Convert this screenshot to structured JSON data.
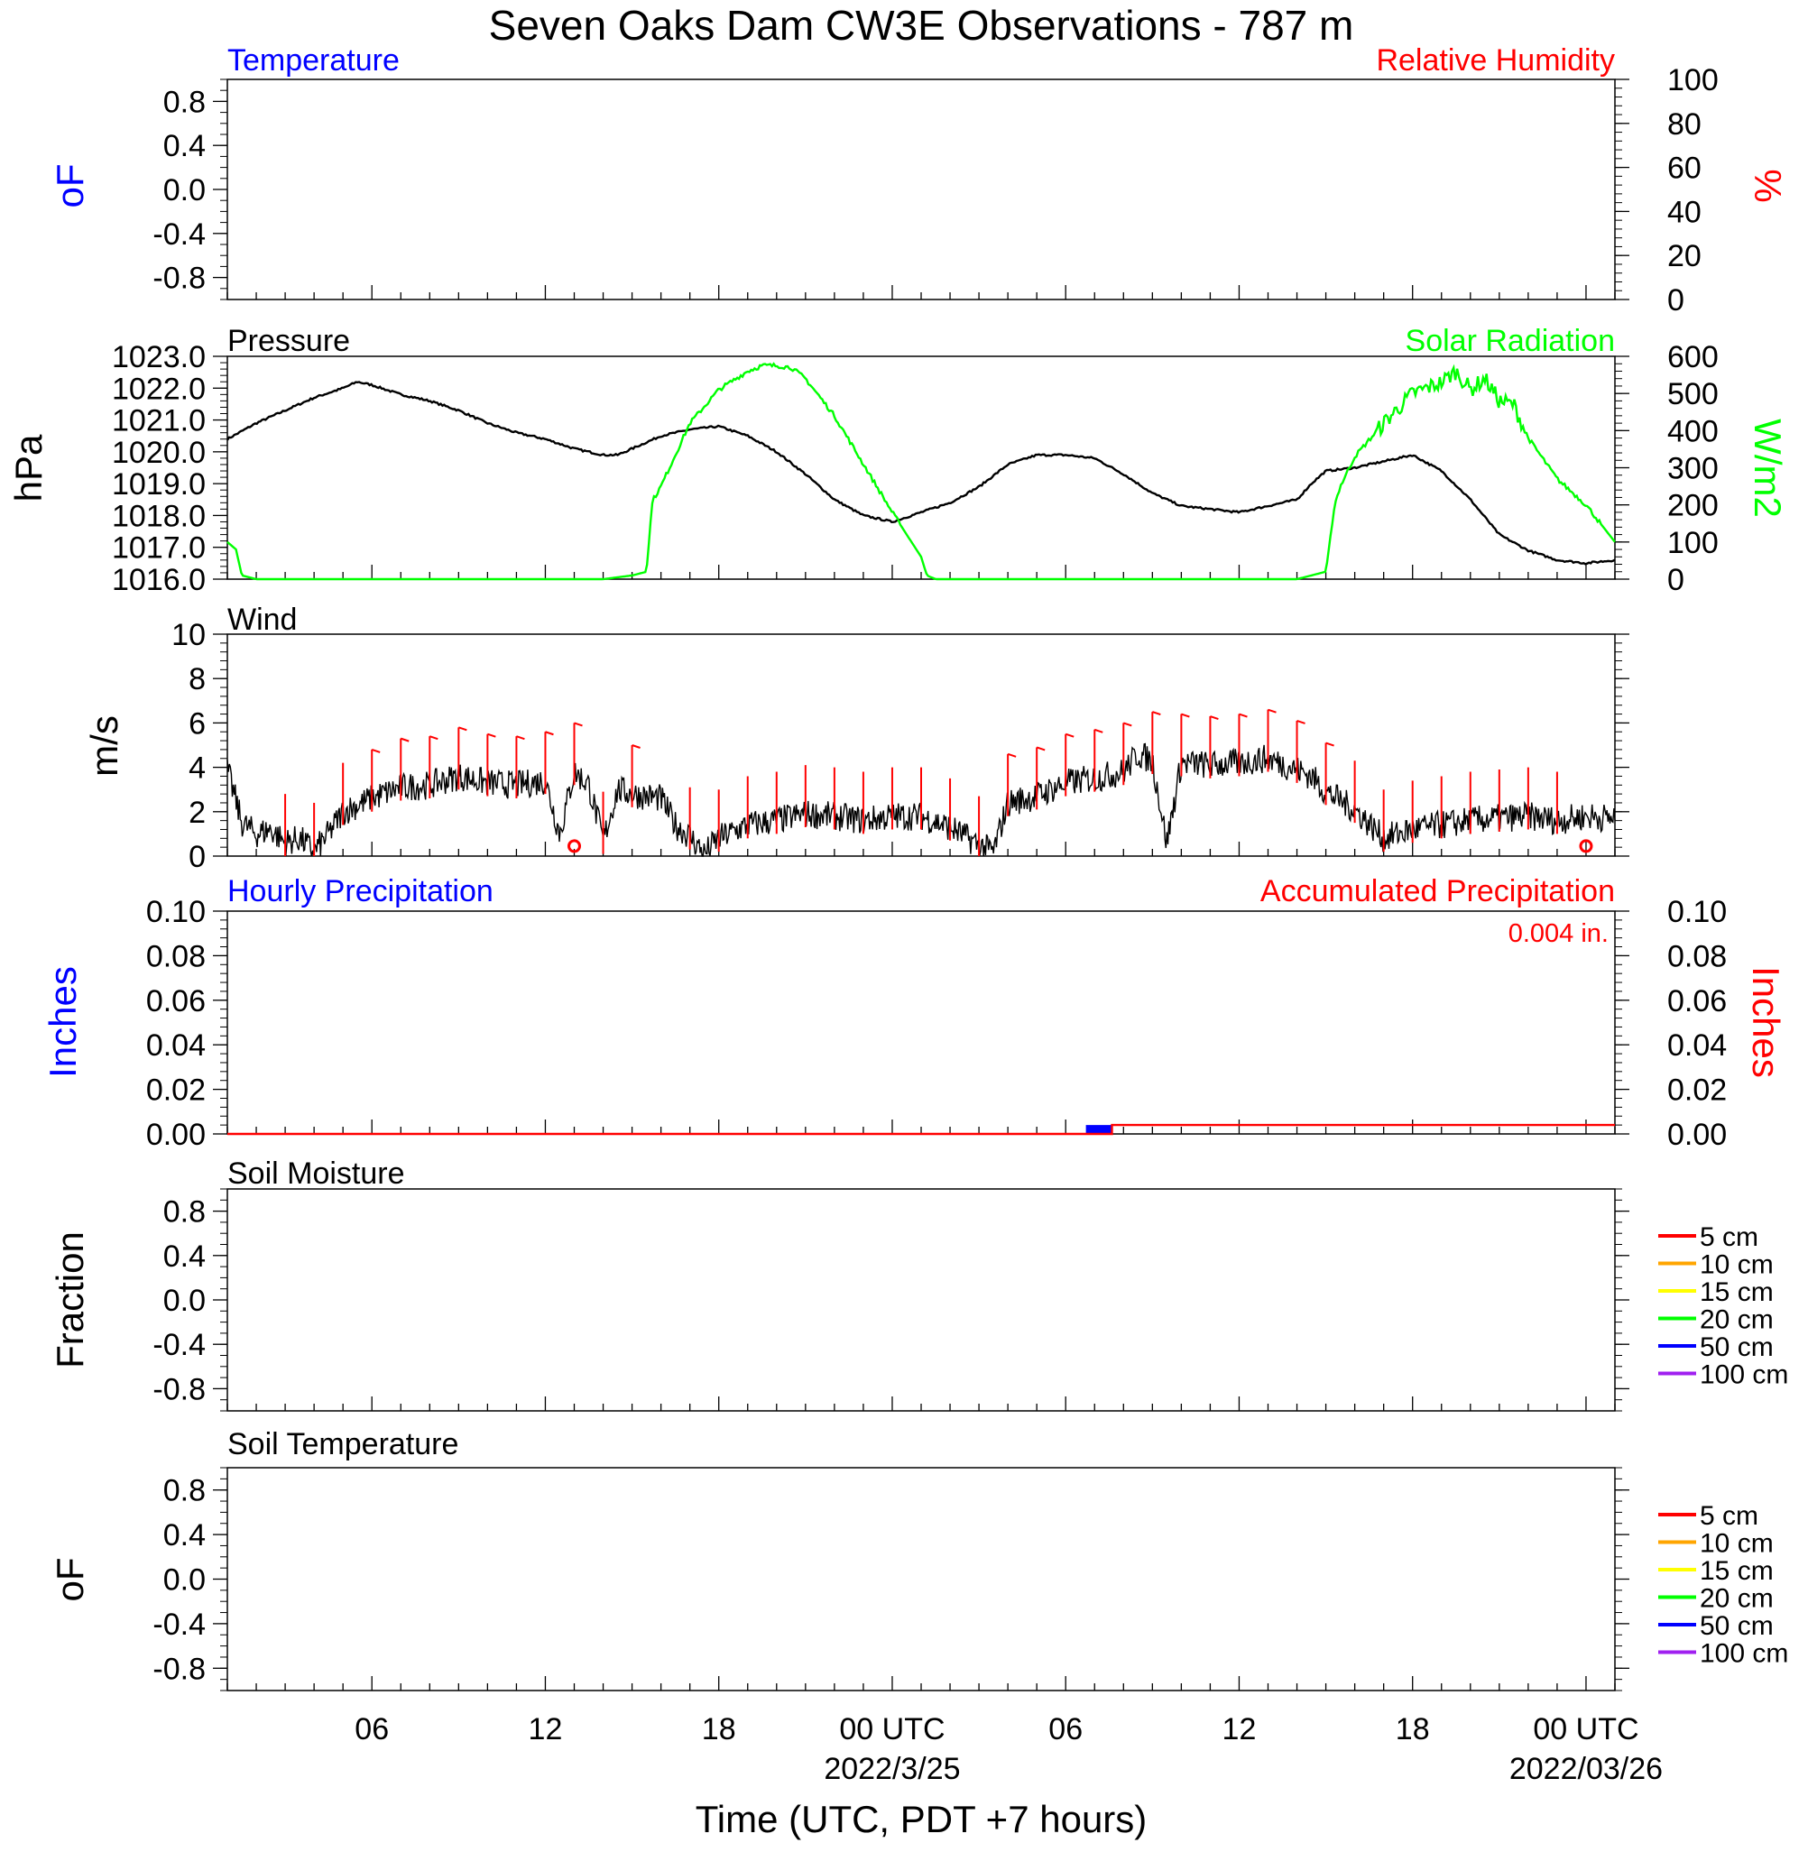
{
  "figure": {
    "title": "Seven Oaks Dam CW3E Observations - 787 m",
    "xlabel": "Time (UTC, PDT +7 hours)"
  },
  "time_axis": {
    "range_hours": [
      0,
      48
    ],
    "ticks": [
      {
        "h": 5,
        "label": "06",
        "sub": ""
      },
      {
        "h": 11,
        "label": "12",
        "sub": ""
      },
      {
        "h": 17,
        "label": "18",
        "sub": ""
      },
      {
        "h": 23,
        "label": "00 UTC",
        "sub": "2022/3/25"
      },
      {
        "h": 29,
        "label": "06",
        "sub": ""
      },
      {
        "h": 35,
        "label": "12",
        "sub": ""
      },
      {
        "h": 41,
        "label": "18",
        "sub": ""
      },
      {
        "h": 47,
        "label": "00 UTC",
        "sub": "2022/03/26"
      }
    ]
  },
  "panels": {
    "temperature": {
      "title_left": "Temperature",
      "title_right": "Relative Humidity",
      "ylabel_left": "oF",
      "ylabel_right": "%",
      "left_ticks": [
        "0.8",
        "0.4",
        "0.0",
        "-0.4",
        "-0.8"
      ],
      "right_ticks": [
        "100",
        "80",
        "60",
        "40",
        "20",
        "0"
      ]
    },
    "pressure": {
      "title_left": "Pressure",
      "title_right": "Solar Radiation",
      "ylabel_left": "hPa",
      "ylabel_right": "W/m2",
      "left_ticks": [
        "1023.0",
        "1022.0",
        "1021.0",
        "1020.0",
        "1019.0",
        "1018.0",
        "1017.0",
        "1016.0"
      ],
      "right_ticks": [
        "600",
        "500",
        "400",
        "300",
        "200",
        "100",
        "0"
      ]
    },
    "wind": {
      "title_left": "Wind",
      "ylabel_left": "m/s",
      "left_ticks": [
        "10",
        "8",
        "6",
        "4",
        "2",
        "0"
      ]
    },
    "precip": {
      "title_left": "Hourly Precipitation",
      "title_right": "Accumulated Precipitation",
      "total_label": "0.004 in.",
      "ylabel_left": "Inches",
      "ylabel_right": "Inches",
      "left_ticks": [
        "0.10",
        "0.08",
        "0.06",
        "0.04",
        "0.02",
        "0.00"
      ],
      "right_ticks": [
        "0.10",
        "0.08",
        "0.06",
        "0.04",
        "0.02",
        "0.00"
      ]
    },
    "soil_moisture": {
      "title_left": "Soil Moisture",
      "ylabel_left": "Fraction",
      "left_ticks": [
        "0.8",
        "0.4",
        "0.0",
        "-0.4",
        "-0.8"
      ],
      "legend": [
        {
          "label": "5 cm",
          "color": "#ff0000"
        },
        {
          "label": "10 cm",
          "color": "#ffa500"
        },
        {
          "label": "15 cm",
          "color": "#ffff00"
        },
        {
          "label": "20 cm",
          "color": "#00ff00"
        },
        {
          "label": "50 cm",
          "color": "#0000ff"
        },
        {
          "label": "100 cm",
          "color": "#a020f0"
        }
      ]
    },
    "soil_temperature": {
      "title_left": "Soil Temperature",
      "ylabel_left": "oF",
      "left_ticks": [
        "0.8",
        "0.4",
        "0.0",
        "-0.4",
        "-0.8"
      ],
      "legend": [
        {
          "label": "5 cm",
          "color": "#ff0000"
        },
        {
          "label": "10 cm",
          "color": "#ffa500"
        },
        {
          "label": "15 cm",
          "color": "#ffff00"
        },
        {
          "label": "20 cm",
          "color": "#00ff00"
        },
        {
          "label": "50 cm",
          "color": "#0000ff"
        },
        {
          "label": "100 cm",
          "color": "#a020f0"
        }
      ]
    }
  },
  "colors": {
    "temperature": "#0000ff",
    "relative_humidity": "#ff0000",
    "pressure": "#000000",
    "solar": "#00ff00",
    "wind_speed": "#000000",
    "wind_barbs": "#ff0000",
    "hourly_precip": "#0000ff",
    "accum_precip": "#ff0000"
  },
  "chart_data": [
    {
      "type": "line",
      "panel": "temperature",
      "series": [],
      "ylim_left": [
        -1,
        1
      ],
      "ylim_right": [
        0,
        100
      ]
    },
    {
      "type": "line",
      "panel": "pressure",
      "x_unit": "hours since first plotted sample",
      "ylim_left": [
        1016,
        1023
      ],
      "ylim_right": [
        0,
        600
      ],
      "series": [
        {
          "axis": "left",
          "x": [
            0,
            1,
            2,
            3,
            4,
            4.5,
            5,
            6,
            7,
            8,
            9,
            10,
            11,
            12,
            13,
            13.5,
            14,
            15,
            16,
            17,
            18,
            19,
            20,
            21,
            22,
            23,
            24,
            25,
            26,
            27,
            28,
            29,
            30,
            31,
            32,
            33,
            34,
            35,
            36,
            37,
            37.5,
            38,
            39,
            40,
            41,
            42,
            43,
            44,
            45,
            46,
            47,
            48
          ],
          "values": [
            1020.4,
            1020.9,
            1021.3,
            1021.7,
            1022.0,
            1022.2,
            1022.1,
            1021.8,
            1021.6,
            1021.3,
            1020.9,
            1020.6,
            1020.4,
            1020.1,
            1019.9,
            1019.9,
            1020.1,
            1020.5,
            1020.7,
            1020.8,
            1020.5,
            1020.0,
            1019.3,
            1018.5,
            1018.0,
            1017.8,
            1018.1,
            1018.4,
            1018.9,
            1019.6,
            1019.9,
            1019.9,
            1019.8,
            1019.3,
            1018.7,
            1018.3,
            1018.2,
            1018.1,
            1018.3,
            1018.5,
            1019.0,
            1019.4,
            1019.5,
            1019.7,
            1019.9,
            1019.4,
            1018.5,
            1017.4,
            1016.9,
            1016.6,
            1016.5,
            1016.6
          ]
        },
        {
          "axis": "right",
          "x": [
            0,
            0.3,
            0.5,
            1,
            2,
            5,
            8,
            11,
            13,
            14,
            14.5,
            14.7,
            15,
            16,
            17,
            18,
            18.5,
            19,
            19.5,
            20,
            21,
            22,
            23,
            24,
            24.2,
            24.5,
            26,
            30,
            34,
            37,
            38,
            38.3,
            38.5,
            39,
            40,
            41,
            42,
            42.5,
            43,
            43.5,
            44,
            44.5,
            45,
            46,
            47,
            48
          ],
          "values": [
            100,
            80,
            10,
            0,
            0,
            0,
            0,
            0,
            0,
            10,
            20,
            210,
            250,
            420,
            510,
            560,
            575,
            575,
            570,
            540,
            440,
            310,
            180,
            60,
            10,
            0,
            0,
            0,
            0,
            0,
            20,
            200,
            250,
            330,
            420,
            500,
            530,
            560,
            510,
            540,
            480,
            470,
            380,
            270,
            200,
            100
          ]
        }
      ]
    },
    {
      "type": "line",
      "panel": "wind",
      "ylim": [
        0,
        10
      ],
      "x": [
        0,
        0.5,
        1,
        1.5,
        2,
        2.5,
        3,
        3.5,
        4,
        5,
        6,
        7,
        8,
        9,
        10,
        10.5,
        11,
        11.5,
        12,
        12.5,
        13,
        13.5,
        14,
        15,
        15.5,
        16,
        16.5,
        17,
        18,
        19,
        20,
        21,
        22,
        23,
        24,
        25,
        25.5,
        26,
        26.5,
        27,
        28,
        29,
        30,
        31,
        31.5,
        32,
        32.5,
        33,
        34,
        35,
        36,
        37,
        37.5,
        38,
        39,
        40,
        41,
        42,
        43,
        44,
        45,
        46,
        47,
        48
      ],
      "values": [
        3.9,
        1.5,
        1.0,
        1.2,
        0.6,
        0.8,
        0.2,
        1.0,
        2.0,
        2.6,
        3.1,
        3.2,
        3.6,
        3.3,
        3.2,
        3.3,
        3.4,
        1.0,
        3.8,
        3.2,
        0.7,
        3.0,
        2.8,
        2.6,
        1.4,
        0.9,
        0.1,
        0.8,
        1.4,
        1.6,
        1.9,
        1.8,
        1.6,
        1.8,
        1.8,
        1.3,
        0.9,
        0.5,
        0.2,
        2.4,
        2.7,
        3.3,
        3.5,
        3.8,
        4.6,
        4.3,
        0.6,
        4.2,
        4.1,
        4.2,
        4.4,
        3.9,
        3.6,
        2.9,
        2.1,
        0.8,
        1.2,
        1.4,
        1.6,
        1.7,
        1.8,
        1.6,
        1.8,
        1.7
      ],
      "barbs_hours": [
        2,
        3,
        4,
        5,
        6,
        7,
        8,
        9,
        10,
        11,
        12,
        13,
        14,
        16,
        17,
        18,
        19,
        20,
        21,
        22,
        23,
        24,
        25,
        26,
        27,
        28,
        29,
        30,
        31,
        32,
        33,
        34,
        35,
        36,
        37,
        38,
        39,
        40,
        41,
        42,
        43,
        44,
        45,
        46
      ],
      "calm_hours": [
        12,
        47
      ]
    },
    {
      "type": "bar",
      "panel": "precip",
      "ylim": [
        0,
        0.1
      ],
      "hourly": [
        {
          "hour": 30,
          "value": 0.004
        }
      ],
      "accumulated": {
        "x": [
          0,
          30.6,
          30.6,
          48
        ],
        "values": [
          0,
          0,
          0.004,
          0.004
        ]
      },
      "total": 0.004
    },
    {
      "type": "line",
      "panel": "soil_moisture",
      "series": [],
      "ylim": [
        -1,
        1
      ]
    },
    {
      "type": "line",
      "panel": "soil_temperature",
      "series": [],
      "ylim": [
        -1,
        1
      ]
    }
  ]
}
